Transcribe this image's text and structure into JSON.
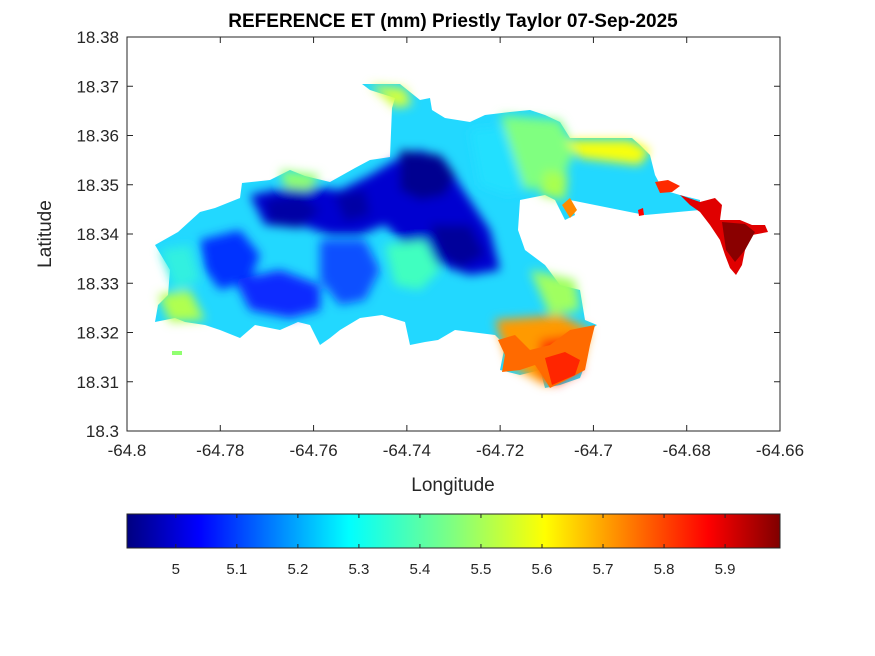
{
  "chart_data": {
    "type": "heatmap",
    "title": "REFERENCE ET (mm) Priestly Taylor 07-Sep-2025",
    "xlabel": "Longitude",
    "ylabel": "Latitude",
    "xlim": [
      -64.8,
      -64.66
    ],
    "ylim": [
      18.3,
      18.38
    ],
    "x_ticks": [
      "-64.8",
      "-64.78",
      "-64.76",
      "-64.74",
      "-64.72",
      "-64.7",
      "-64.68",
      "-64.66"
    ],
    "y_ticks": [
      "18.3",
      "18.31",
      "18.32",
      "18.33",
      "18.34",
      "18.35",
      "18.36",
      "18.37",
      "18.38"
    ],
    "colormap": "jet",
    "colorbar": {
      "range": [
        4.92,
        5.99
      ],
      "ticks": [
        "5",
        "5.1",
        "5.2",
        "5.3",
        "5.4",
        "5.5",
        "5.6",
        "5.7",
        "5.8",
        "5.9"
      ],
      "placement": "bottom"
    },
    "grid": false
  }
}
